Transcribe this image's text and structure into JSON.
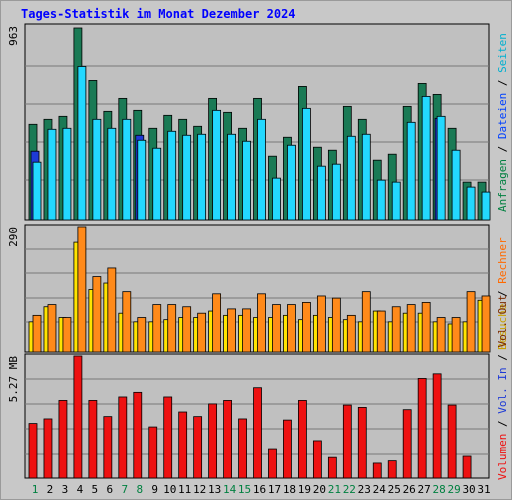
{
  "title": "Tages-Statistik im Monat Dezember 2024",
  "colors": {
    "anfragen": "#1a7a55",
    "dateien": "#23d8ff",
    "seiten": "#1e3ad6",
    "besuche": "#ffe400",
    "rechner": "#ff8a1a",
    "volumen": "#ee1111",
    "vol_in": "#1e3ad6",
    "vol_out": "#7b2b00",
    "weekday": "#000000",
    "weekend": "#008040"
  },
  "right_legend": {
    "top": [
      {
        "text": "Anfragen",
        "color": "#008040"
      },
      {
        "text": " / ",
        "color": "#000000"
      },
      {
        "text": "Dateien",
        "color": "#0040ff"
      },
      {
        "text": " / ",
        "color": "#000000"
      },
      {
        "text": "Seiten",
        "color": "#00b0d0"
      }
    ],
    "middle": [
      {
        "text": "Besuche",
        "color": "#c8a000"
      },
      {
        "text": " / ",
        "color": "#000000"
      },
      {
        "text": "Rechner",
        "color": "#ff6a00"
      }
    ],
    "bottom": [
      {
        "text": "Volumen",
        "color": "#ee1111"
      },
      {
        "text": " / ",
        "color": "#000000"
      },
      {
        "text": "Vol. In",
        "color": "#1e3ad6"
      },
      {
        "text": " / ",
        "color": "#000000"
      },
      {
        "text": "Vol. Out",
        "color": "#7b2b00"
      }
    ]
  },
  "chart_data": [
    {
      "type": "bar",
      "panel": "hits",
      "ymax_label": "963",
      "ylim": [
        0,
        963
      ],
      "categories": [
        "1",
        "2",
        "3",
        "4",
        "5",
        "6",
        "7",
        "8",
        "9",
        "10",
        "11",
        "12",
        "13",
        "14",
        "15",
        "16",
        "17",
        "18",
        "19",
        "20",
        "21",
        "22",
        "23",
        "24",
        "25",
        "26",
        "27",
        "28",
        "29",
        "30",
        "31"
      ],
      "series": [
        {
          "name": "Anfragen",
          "values": [
            480,
            505,
            520,
            963,
            700,
            545,
            610,
            550,
            460,
            525,
            505,
            470,
            610,
            540,
            460,
            610,
            320,
            415,
            670,
            365,
            350,
            570,
            505,
            300,
            330,
            570,
            685,
            630,
            460,
            190,
            190
          ]
        },
        {
          "name": "Dateien",
          "values": [
            290,
            455,
            460,
            770,
            505,
            460,
            505,
            400,
            360,
            445,
            425,
            430,
            550,
            430,
            395,
            505,
            210,
            375,
            560,
            270,
            280,
            420,
            430,
            200,
            190,
            490,
            620,
            520,
            350,
            165,
            140
          ]
        },
        {
          "name": "Seiten",
          "values": [
            345,
            0,
            0,
            0,
            0,
            0,
            0,
            425,
            0,
            0,
            0,
            0,
            0,
            0,
            0,
            0,
            0,
            0,
            0,
            0,
            0,
            0,
            0,
            0,
            0,
            0,
            0,
            510,
            0,
            0,
            0
          ]
        }
      ]
    },
    {
      "type": "bar",
      "panel": "visits",
      "ymax_label": "290",
      "ylim": [
        0,
        290
      ],
      "categories": [
        "1",
        "2",
        "3",
        "4",
        "5",
        "6",
        "7",
        "8",
        "9",
        "10",
        "11",
        "12",
        "13",
        "14",
        "15",
        "16",
        "17",
        "18",
        "19",
        "20",
        "21",
        "22",
        "23",
        "24",
        "25",
        "26",
        "27",
        "28",
        "29",
        "30",
        "31"
      ],
      "series": [
        {
          "name": "Besuche",
          "values": [
            70,
            105,
            80,
            255,
            145,
            160,
            90,
            70,
            70,
            75,
            80,
            80,
            95,
            85,
            85,
            80,
            80,
            85,
            75,
            85,
            80,
            75,
            70,
            95,
            70,
            90,
            90,
            70,
            65,
            70,
            120
          ]
        },
        {
          "name": "Rechner",
          "values": [
            85,
            110,
            80,
            290,
            175,
            195,
            140,
            80,
            110,
            110,
            105,
            90,
            135,
            100,
            100,
            135,
            110,
            110,
            115,
            130,
            125,
            85,
            140,
            95,
            105,
            110,
            115,
            80,
            80,
            140,
            130
          ]
        }
      ]
    },
    {
      "type": "bar",
      "panel": "volume",
      "ymax_label": "5.27 MB",
      "ylim": [
        0,
        5.27
      ],
      "categories": [
        "1",
        "2",
        "3",
        "4",
        "5",
        "6",
        "7",
        "8",
        "9",
        "10",
        "11",
        "12",
        "13",
        "14",
        "15",
        "16",
        "17",
        "18",
        "19",
        "20",
        "21",
        "22",
        "23",
        "24",
        "25",
        "26",
        "27",
        "28",
        "29",
        "30",
        "31"
      ],
      "series": [
        {
          "name": "Volumen",
          "values": [
            2.35,
            2.55,
            3.35,
            5.27,
            3.35,
            2.65,
            3.5,
            3.7,
            2.2,
            3.5,
            2.85,
            2.65,
            3.2,
            3.35,
            2.55,
            3.9,
            1.25,
            2.5,
            3.35,
            1.6,
            0.9,
            3.15,
            3.05,
            0.65,
            0.75,
            2.95,
            4.3,
            4.5,
            3.15,
            0.95,
            0
          ]
        }
      ]
    }
  ],
  "weekend_days": [
    "1",
    "7",
    "8",
    "14",
    "15",
    "21",
    "22",
    "28",
    "29"
  ]
}
